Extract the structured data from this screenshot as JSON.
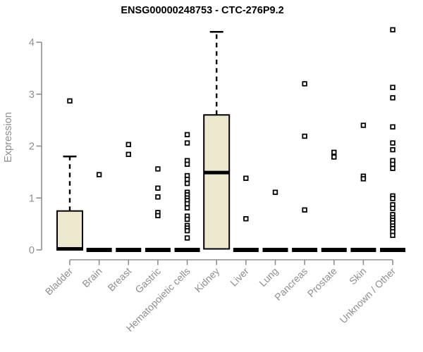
{
  "chart_data": {
    "type": "boxplot",
    "title": "ENSG00000248753 - CTC-276P9.2",
    "ylabel": "Expression",
    "xlabel": "",
    "ylim": [
      0,
      4.3
    ],
    "yticks": [
      0,
      1,
      2,
      3,
      4
    ],
    "grid": false,
    "legend": "none",
    "colors": {
      "box_fill": "#ECE8CD",
      "box_stroke": "#000000",
      "axis": "#8f8f8f",
      "tick_text": "#8f8f8f",
      "title_text": "#000000",
      "outlier_fill": "#ffffff"
    },
    "categories": [
      "Bladder",
      "Brain",
      "Breast",
      "Gastric",
      "Hematopoietic cells",
      "Kidney",
      "Liver",
      "Lung",
      "Pancreas",
      "Prostate",
      "Skin",
      "Unknown / Other"
    ],
    "boxes": [
      {
        "category": "Bladder",
        "q1": 0,
        "median": 0.02,
        "q3": 0.75,
        "whisker_low": 0,
        "whisker_high": 1.8,
        "outliers": [
          2.87
        ]
      },
      {
        "category": "Brain",
        "q1": 0,
        "median": 0,
        "q3": 0,
        "whisker_low": 0,
        "whisker_high": 0,
        "outliers": [
          1.45
        ]
      },
      {
        "category": "Breast",
        "q1": 0,
        "median": 0,
        "q3": 0,
        "whisker_low": 0,
        "whisker_high": 0,
        "outliers": [
          2.03,
          1.84
        ]
      },
      {
        "category": "Gastric",
        "q1": 0,
        "median": 0,
        "q3": 0,
        "whisker_low": 0,
        "whisker_high": 0,
        "outliers": [
          1.56,
          1.19,
          1.02,
          0.72,
          0.66
        ]
      },
      {
        "category": "Hematopoietic cells",
        "q1": 0,
        "median": 0,
        "q3": 0,
        "whisker_low": 0,
        "whisker_high": 0,
        "outliers": [
          2.22,
          2.06,
          1.72,
          1.65,
          1.43,
          1.36,
          1.28,
          1.11,
          1.06,
          1.0,
          0.95,
          0.89,
          0.81,
          0.65,
          0.59,
          0.47,
          0.42,
          0.37,
          0.23
        ]
      },
      {
        "category": "Kidney",
        "q1": 0.02,
        "median": 1.49,
        "q3": 2.6,
        "whisker_low": 0.02,
        "whisker_high": 4.2,
        "outliers": []
      },
      {
        "category": "Liver",
        "q1": 0,
        "median": 0,
        "q3": 0,
        "whisker_low": 0,
        "whisker_high": 0,
        "outliers": [
          1.38,
          0.6
        ]
      },
      {
        "category": "Lung",
        "q1": 0,
        "median": 0,
        "q3": 0,
        "whisker_low": 0,
        "whisker_high": 0,
        "outliers": [
          1.11
        ]
      },
      {
        "category": "Pancreas",
        "q1": 0,
        "median": 0,
        "q3": 0,
        "whisker_low": 0,
        "whisker_high": 0,
        "outliers": [
          3.2,
          2.19,
          0.77
        ]
      },
      {
        "category": "Prostate",
        "q1": 0,
        "median": 0,
        "q3": 0,
        "whisker_low": 0,
        "whisker_high": 0,
        "outliers": [
          1.88,
          1.79
        ]
      },
      {
        "category": "Skin",
        "q1": 0,
        "median": 0,
        "q3": 0,
        "whisker_low": 0,
        "whisker_high": 0,
        "outliers": [
          2.4,
          1.42,
          1.37
        ]
      },
      {
        "category": "Unknown / Other",
        "q1": 0,
        "median": 0,
        "q3": 0,
        "whisker_low": 0,
        "whisker_high": 0,
        "outliers": [
          4.24,
          3.13,
          2.93,
          2.37,
          2.06,
          1.93,
          1.72,
          1.65,
          1.57,
          1.04,
          0.99,
          0.87,
          0.8,
          0.68,
          0.62,
          0.57,
          0.52,
          0.46,
          0.41,
          0.35,
          0.28
        ]
      }
    ]
  }
}
